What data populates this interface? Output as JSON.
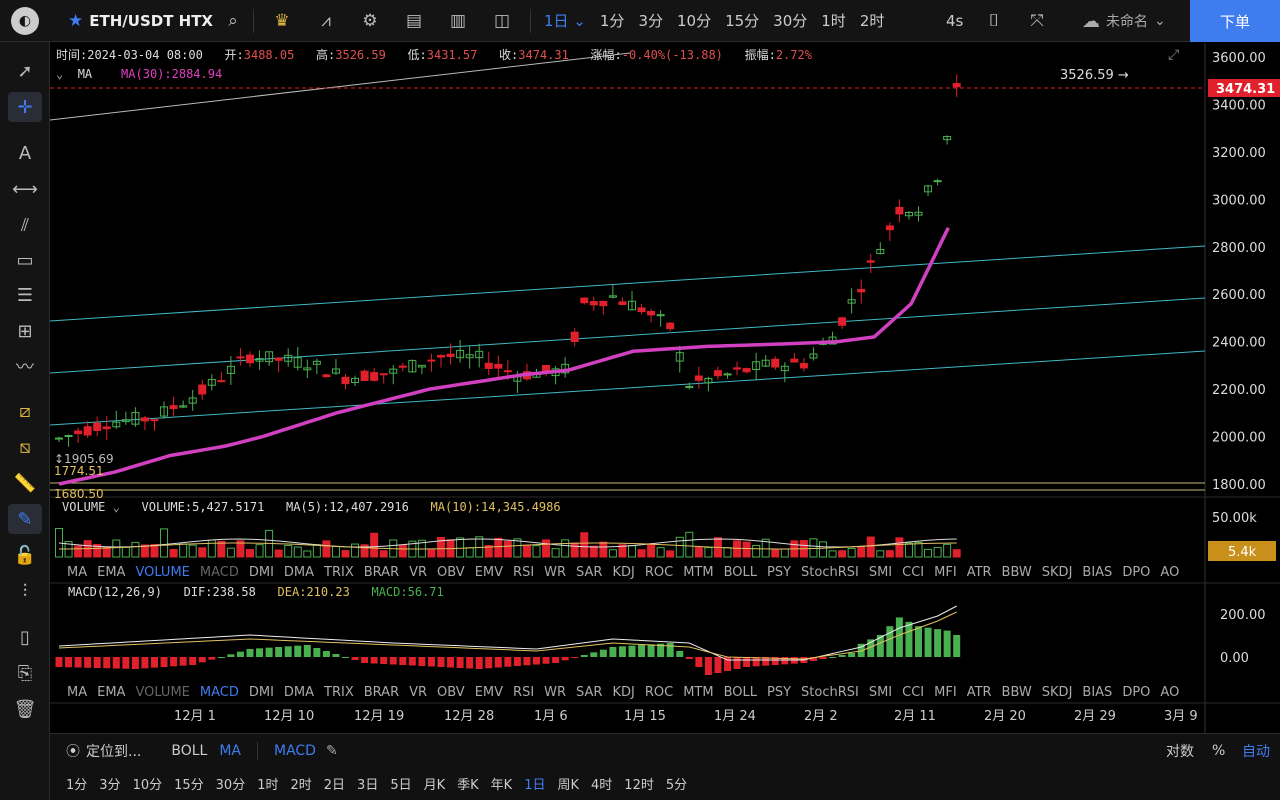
{
  "topbar": {
    "symbol": "ETH/USDT HTX",
    "intervals": [
      "1日",
      "1分",
      "3分",
      "10分",
      "15分",
      "30分",
      "1时",
      "2时"
    ],
    "active_interval": "1日",
    "timer": "4s",
    "layout_name": "未命名",
    "order_label": "下单"
  },
  "legend": {
    "time_label": "时间:",
    "time": "2024-03-04 08:00",
    "open_label": "开:",
    "open": "3488.05",
    "high_label": "高:",
    "high": "3526.59",
    "low_label": "低:",
    "low": "3431.57",
    "close_label": "收:",
    "close": "3474.31",
    "change_label": "涨幅:",
    "change": "-0.40%(-13.88)",
    "amp_label": "振幅:",
    "amp": "2.72%",
    "ma_name": "MA",
    "ma30": "MA(30):2884.94"
  },
  "price_axis": {
    "ticks": [
      "3600.00",
      "3400.00",
      "3200.00",
      "3000.00",
      "2800.00",
      "2600.00",
      "2400.00",
      "2200.00",
      "2000.00",
      "1800.00"
    ],
    "last_price": "3474.31",
    "high_marker": "3526.59",
    "level_labels": [
      "1905.69",
      "1774.51",
      "1680.50"
    ]
  },
  "volume": {
    "title": "VOLUME",
    "value": "VOLUME:5,427.5171",
    "ma5": "MA(5):12,407.2916",
    "ma10": "MA(10):14,345.4986",
    "axis_top": "50.00k",
    "last": "5.4k"
  },
  "macd": {
    "title": "MACD(12,26,9)",
    "dif": "DIF:238.58",
    "dea": "DEA:210.23",
    "macd": "MACD:56.71",
    "ticks": [
      "200.00",
      "0.00"
    ]
  },
  "indicator_tabs": [
    "MA",
    "EMA",
    "VOLUME",
    "MACD",
    "DMI",
    "DMA",
    "TRIX",
    "BRAR",
    "VR",
    "OBV",
    "EMV",
    "RSI",
    "WR",
    "SAR",
    "KDJ",
    "ROC",
    "MTM",
    "BOLL",
    "PSY",
    "StochRSI",
    "SMI",
    "CCI",
    "MFI",
    "ATR",
    "BBW",
    "SKDJ",
    "BIAS",
    "DPO",
    "AO"
  ],
  "date_ticks": [
    "12月 1",
    "12月 10",
    "12月 19",
    "12月 28",
    "1月 6",
    "1月 15",
    "1月 24",
    "2月 2",
    "2月 11",
    "2月 20",
    "2月 29",
    "3月 9"
  ],
  "bottom1": {
    "locate": "定位到...",
    "boll": "BOLL",
    "ma": "MA",
    "macd": "MACD",
    "log": "对数",
    "pct": "%",
    "auto": "自动"
  },
  "bottom2": [
    "1分",
    "3分",
    "10分",
    "15分",
    "30分",
    "1时",
    "2时",
    "2日",
    "3日",
    "5日",
    "月K",
    "季K",
    "年K",
    "1日",
    "周K",
    "4时",
    "12时",
    "5分"
  ],
  "bottom2_active": "1日",
  "colors": {
    "up": "#49b04f",
    "down": "#e0202a",
    "accent": "#3f7cf0",
    "ma30": "#d040c0"
  }
}
